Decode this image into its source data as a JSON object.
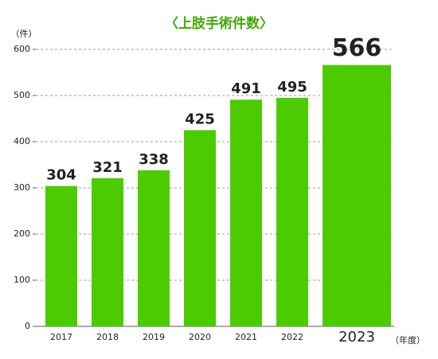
{
  "chart_data": {
    "type": "bar",
    "title": "〈上肢手術件数〉",
    "y_label": "（件）",
    "x_label": "（年度）",
    "categories": [
      "2017",
      "2018",
      "2019",
      "2020",
      "2021",
      "2022",
      "2023"
    ],
    "values": [
      304,
      321,
      338,
      425,
      491,
      495,
      566
    ],
    "color": "#4ccc00",
    "ylim": [
      0,
      600
    ],
    "yticks": [
      0,
      100,
      200,
      300,
      400,
      500,
      600
    ],
    "grid": true
  }
}
